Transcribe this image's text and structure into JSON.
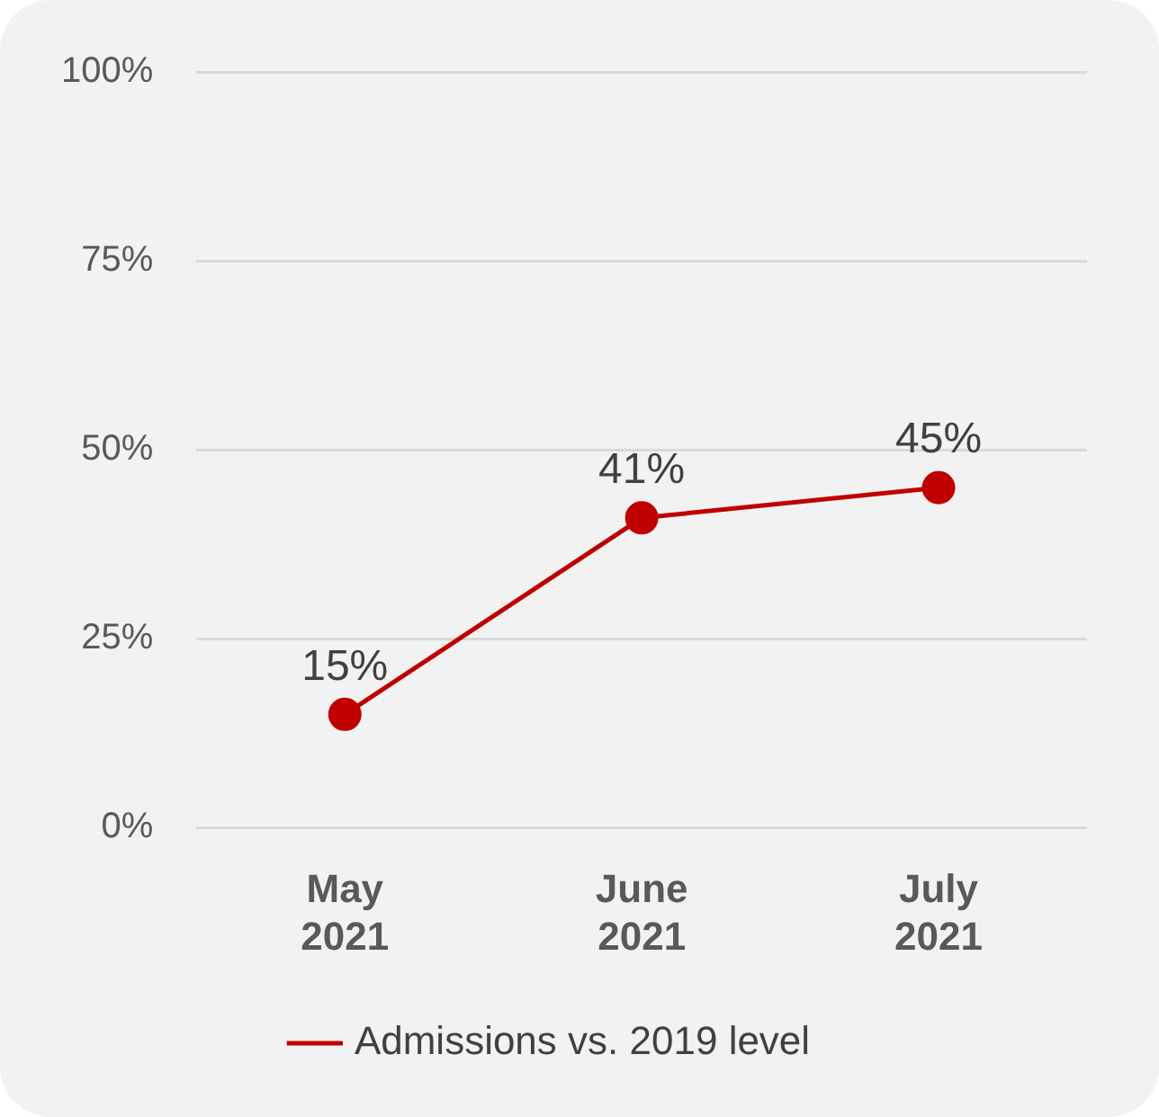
{
  "chart_data": {
    "type": "line",
    "categories": [
      "May 2021",
      "June 2021",
      "July 2021"
    ],
    "series": [
      {
        "name": "Admissions vs. 2019 level",
        "color": "#c00000",
        "values": [
          15,
          41,
          45
        ],
        "value_labels": [
          "15%",
          "41%",
          "45%"
        ]
      }
    ],
    "ylim": [
      0,
      100
    ],
    "yticks": [
      {
        "value": 0,
        "label": "0%"
      },
      {
        "value": 25,
        "label": "25%"
      },
      {
        "value": 50,
        "label": "50%"
      },
      {
        "value": 75,
        "label": "75%"
      },
      {
        "value": 100,
        "label": "100%"
      }
    ],
    "grid": "y",
    "legend": "bottom",
    "marker": "circle",
    "line_style": "solid"
  }
}
